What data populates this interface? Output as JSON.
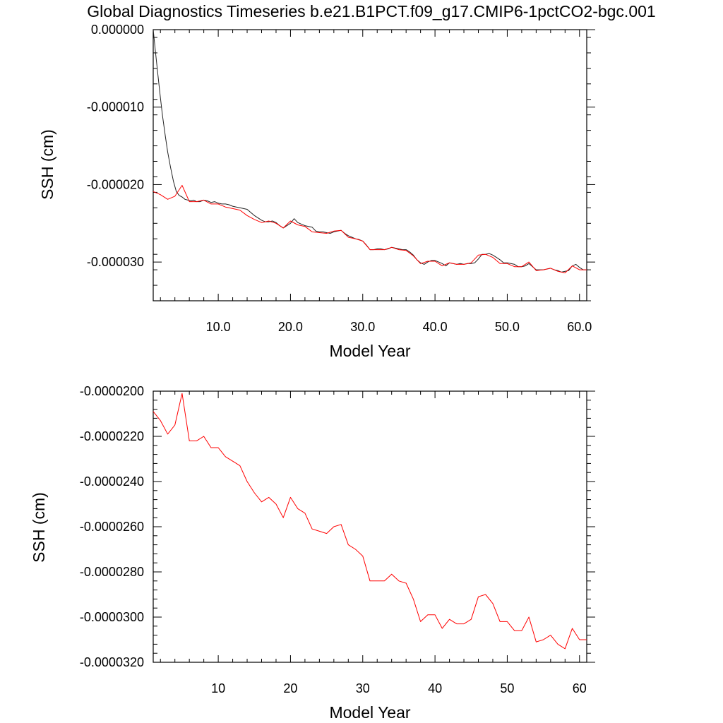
{
  "page_title": "Global Diagnostics Timeseries b.e21.B1PCT.f09_g17.CMIP6-1pctCO2-bgc.001",
  "colors": {
    "raw_line": "#222222",
    "annual_line": "#ff0000",
    "axes": "#000000",
    "background": "#ffffff"
  },
  "chart_data": [
    {
      "type": "line",
      "title": "Global Diagnostics Timeseries b.e21.B1PCT.f09_g17.CMIP6-1pctCO2-bgc.001",
      "xlabel": "Model Year",
      "ylabel": "SSH (cm)",
      "xlim": [
        1,
        61
      ],
      "ylim": [
        -3.5e-05,
        0.0
      ],
      "x_ticks": [
        10,
        20,
        30,
        40,
        50,
        60
      ],
      "x_tick_labels": [
        "10.0",
        "20.0",
        "30.0",
        "40.0",
        "50.0",
        "60.0"
      ],
      "y_ticks": [
        0.0,
        -1e-05,
        -2e-05,
        -3e-05
      ],
      "y_tick_labels": [
        "0.000000",
        "-0.000010",
        "-0.000020",
        "-0.000030"
      ],
      "grid": false,
      "series": [
        {
          "color": "#222222",
          "x": [
            1.0,
            1.3,
            1.7,
            2.0,
            2.3,
            2.7,
            3.0,
            3.4,
            3.8,
            4.2,
            4.6,
            5.0,
            5.4,
            5.8,
            6.2,
            6.6,
            7.0,
            7.5,
            8.0,
            8.5,
            9.0,
            9.5,
            10.0,
            10.5,
            11.0,
            11.5,
            12.0,
            12.5,
            13.0,
            13.5,
            14.0,
            14.5,
            15.0,
            15.5,
            16.0,
            16.5,
            17.0,
            17.5,
            18.0,
            18.5,
            19.0,
            19.5,
            20.0,
            20.5,
            21.0,
            21.5,
            22.0,
            22.5,
            23.0,
            23.5,
            24.0,
            24.5,
            25.0,
            25.5,
            26.0,
            26.5,
            27.0,
            27.5,
            28.0,
            28.5,
            29.0,
            29.5,
            30.0,
            30.5,
            31.0,
            31.5,
            32.0,
            32.5,
            33.0,
            33.5,
            34.0,
            34.5,
            35.0,
            35.5,
            36.0,
            36.5,
            37.0,
            37.5,
            38.0,
            38.5,
            39.0,
            39.5,
            40.0,
            40.5,
            41.0,
            41.5,
            42.0,
            42.5,
            43.0,
            43.5,
            44.0,
            44.5,
            45.0,
            45.5,
            46.0,
            46.5,
            47.0,
            47.5,
            48.0,
            48.5,
            49.0,
            49.5,
            50.0,
            50.5,
            51.0,
            51.5,
            52.0,
            52.5,
            53.0,
            53.5,
            54.0,
            54.5,
            55.0,
            55.5,
            56.0,
            56.5,
            57.0,
            57.5,
            58.0,
            58.5,
            59.0,
            59.5,
            60.0,
            60.5,
            61.0
          ],
          "y": [
            0.0,
            -2.8e-06,
            -6.3e-06,
            -8.8e-06,
            -1.12e-05,
            -1.39e-05,
            -1.58e-05,
            -1.78e-05,
            -1.96e-05,
            -2.09e-05,
            -2.14e-05,
            -2.16e-05,
            -2.19e-05,
            -2.2e-05,
            -2.21e-05,
            -2.2e-05,
            -2.22e-05,
            -2.22e-05,
            -2.2e-05,
            -2.21e-05,
            -2.23e-05,
            -2.22e-05,
            -2.24e-05,
            -2.25e-05,
            -2.25e-05,
            -2.26e-05,
            -2.28e-05,
            -2.29e-05,
            -2.3e-05,
            -2.31e-05,
            -2.32e-05,
            -2.36e-05,
            -2.4e-05,
            -2.43e-05,
            -2.46e-05,
            -2.48e-05,
            -2.48e-05,
            -2.47e-05,
            -2.49e-05,
            -2.53e-05,
            -2.56e-05,
            -2.53e-05,
            -2.5e-05,
            -2.44e-05,
            -2.49e-05,
            -2.51e-05,
            -2.53e-05,
            -2.54e-05,
            -2.55e-05,
            -2.6e-05,
            -2.61e-05,
            -2.61e-05,
            -2.62e-05,
            -2.63e-05,
            -2.61e-05,
            -2.6e-05,
            -2.59e-05,
            -2.63e-05,
            -2.66e-05,
            -2.68e-05,
            -2.7e-05,
            -2.71e-05,
            -2.73e-05,
            -2.78e-05,
            -2.84e-05,
            -2.84e-05,
            -2.83e-05,
            -2.83e-05,
            -2.84e-05,
            -2.83e-05,
            -2.81e-05,
            -2.82e-05,
            -2.83e-05,
            -2.84e-05,
            -2.84e-05,
            -2.87e-05,
            -2.91e-05,
            -2.97e-05,
            -3.01e-05,
            -3.03e-05,
            -3e-05,
            -2.98e-05,
            -2.98e-05,
            -3e-05,
            -3.02e-05,
            -3.05e-05,
            -3.01e-05,
            -3.02e-05,
            -3.03e-05,
            -3.02e-05,
            -3.03e-05,
            -3.02e-05,
            -3.02e-05,
            -3.01e-05,
            -2.96e-05,
            -2.9e-05,
            -2.9e-05,
            -2.89e-05,
            -2.91e-05,
            -2.94e-05,
            -2.97e-05,
            -3.01e-05,
            -3.01e-05,
            -3.02e-05,
            -3.03e-05,
            -3.06e-05,
            -3.06e-05,
            -3.05e-05,
            -3.02e-05,
            -3.06e-05,
            -3.1e-05,
            -3.1e-05,
            -3.1e-05,
            -3.09e-05,
            -3.08e-05,
            -3.1e-05,
            -3.11e-05,
            -3.13e-05,
            -3.12e-05,
            -3.11e-05,
            -3.05e-05,
            -3.03e-05,
            -3.07e-05,
            -3.1e-05,
            -3.1e-05
          ]
        },
        {
          "color": "#ff0000",
          "x": [
            1.0,
            2.0,
            3.0,
            4.0,
            5.0,
            6.0,
            7.0,
            8.0,
            9.0,
            10.0,
            11.0,
            12.0,
            13.0,
            14.0,
            15.0,
            16.0,
            17.0,
            18.0,
            19.0,
            20.0,
            21.0,
            22.0,
            23.0,
            24.0,
            25.0,
            26.0,
            27.0,
            28.0,
            29.0,
            30.0,
            31.0,
            32.0,
            33.0,
            34.0,
            35.0,
            36.0,
            37.0,
            38.0,
            39.0,
            40.0,
            41.0,
            42.0,
            43.0,
            44.0,
            45.0,
            46.0,
            47.0,
            48.0,
            49.0,
            50.0,
            51.0,
            52.0,
            53.0,
            54.0,
            55.0,
            56.0,
            57.0,
            58.0,
            59.0,
            60.0,
            61.0
          ],
          "y": [
            -2.09e-05,
            -2.13e-05,
            -2.19e-05,
            -2.15e-05,
            -2.01e-05,
            -2.22e-05,
            -2.22e-05,
            -2.2e-05,
            -2.25e-05,
            -2.25e-05,
            -2.29e-05,
            -2.31e-05,
            -2.33e-05,
            -2.4e-05,
            -2.45e-05,
            -2.49e-05,
            -2.47e-05,
            -2.5e-05,
            -2.56e-05,
            -2.47e-05,
            -2.52e-05,
            -2.54e-05,
            -2.61e-05,
            -2.62e-05,
            -2.63e-05,
            -2.6e-05,
            -2.59e-05,
            -2.68e-05,
            -2.7e-05,
            -2.73e-05,
            -2.84e-05,
            -2.84e-05,
            -2.84e-05,
            -2.81e-05,
            -2.84e-05,
            -2.85e-05,
            -2.92e-05,
            -3.02e-05,
            -2.99e-05,
            -2.99e-05,
            -3.05e-05,
            -3.01e-05,
            -3.03e-05,
            -3.03e-05,
            -3.01e-05,
            -2.91e-05,
            -2.9e-05,
            -2.94e-05,
            -3.02e-05,
            -3.02e-05,
            -3.06e-05,
            -3.06e-05,
            -3e-05,
            -3.11e-05,
            -3.1e-05,
            -3.08e-05,
            -3.12e-05,
            -3.14e-05,
            -3.05e-05,
            -3.1e-05,
            -3.1e-05
          ]
        }
      ]
    },
    {
      "type": "line",
      "xlabel": "Model Year",
      "ylabel": "SSH (cm)",
      "xlim": [
        1,
        61
      ],
      "ylim": [
        -3.2e-05,
        -2e-05
      ],
      "x_ticks": [
        10,
        20,
        30,
        40,
        50,
        60
      ],
      "x_tick_labels": [
        "10",
        "20",
        "30",
        "40",
        "50",
        "60"
      ],
      "y_ticks": [
        -2e-05,
        -2.2e-05,
        -2.4e-05,
        -2.6e-05,
        -2.8e-05,
        -3e-05,
        -3.2e-05
      ],
      "y_tick_labels": [
        "-0.0000200",
        "-0.0000220",
        "-0.0000240",
        "-0.0000260",
        "-0.0000280",
        "-0.0000300",
        "-0.0000320"
      ],
      "grid": false,
      "series": [
        {
          "color": "#ff0000",
          "x": [
            1.0,
            2.0,
            3.0,
            4.0,
            5.0,
            6.0,
            7.0,
            8.0,
            9.0,
            10.0,
            11.0,
            12.0,
            13.0,
            14.0,
            15.0,
            16.0,
            17.0,
            18.0,
            19.0,
            20.0,
            21.0,
            22.0,
            23.0,
            24.0,
            25.0,
            26.0,
            27.0,
            28.0,
            29.0,
            30.0,
            31.0,
            32.0,
            33.0,
            34.0,
            35.0,
            36.0,
            37.0,
            38.0,
            39.0,
            40.0,
            41.0,
            42.0,
            43.0,
            44.0,
            45.0,
            46.0,
            47.0,
            48.0,
            49.0,
            50.0,
            51.0,
            52.0,
            53.0,
            54.0,
            55.0,
            56.0,
            57.0,
            58.0,
            59.0,
            60.0,
            61.0
          ],
          "y": [
            -2.09e-05,
            -2.13e-05,
            -2.19e-05,
            -2.15e-05,
            -2.01e-05,
            -2.22e-05,
            -2.22e-05,
            -2.2e-05,
            -2.25e-05,
            -2.25e-05,
            -2.29e-05,
            -2.31e-05,
            -2.33e-05,
            -2.4e-05,
            -2.45e-05,
            -2.49e-05,
            -2.47e-05,
            -2.5e-05,
            -2.56e-05,
            -2.47e-05,
            -2.52e-05,
            -2.54e-05,
            -2.61e-05,
            -2.62e-05,
            -2.63e-05,
            -2.6e-05,
            -2.59e-05,
            -2.68e-05,
            -2.7e-05,
            -2.73e-05,
            -2.84e-05,
            -2.84e-05,
            -2.84e-05,
            -2.81e-05,
            -2.84e-05,
            -2.85e-05,
            -2.92e-05,
            -3.02e-05,
            -2.99e-05,
            -2.99e-05,
            -3.05e-05,
            -3.01e-05,
            -3.03e-05,
            -3.03e-05,
            -3.01e-05,
            -2.91e-05,
            -2.9e-05,
            -2.94e-05,
            -3.02e-05,
            -3.02e-05,
            -3.06e-05,
            -3.06e-05,
            -3e-05,
            -3.11e-05,
            -3.1e-05,
            -3.08e-05,
            -3.12e-05,
            -3.14e-05,
            -3.05e-05,
            -3.1e-05,
            -3.1e-05
          ]
        }
      ]
    }
  ]
}
